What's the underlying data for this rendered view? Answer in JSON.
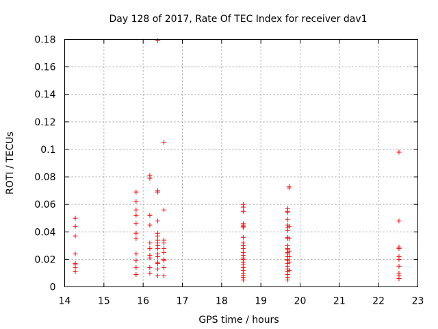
{
  "chart_data": {
    "type": "scatter",
    "title": "Day 128 of 2017, Rate Of TEC Index for receiver dav1",
    "xlabel": "GPS time / hours",
    "ylabel": "ROTI / TECUs",
    "xlim": [
      14,
      23
    ],
    "ylim": [
      0,
      0.18
    ],
    "x_ticks": [
      14,
      15,
      16,
      17,
      18,
      19,
      20,
      21,
      22,
      23
    ],
    "x_tick_labels": [
      "14",
      "15",
      "16",
      "17",
      "18",
      "19",
      "20",
      "21",
      "22",
      "23"
    ],
    "y_ticks": [
      0,
      0.02,
      0.04,
      0.06,
      0.08,
      0.1,
      0.12,
      0.14,
      0.16,
      0.18
    ],
    "y_tick_labels": [
      "0",
      "0.02",
      "0.04",
      "0.06",
      "0.08",
      "0.1",
      "0.12",
      "0.14",
      "0.16",
      "0.18"
    ],
    "grid": true,
    "marker": "+",
    "color": "#ff0000",
    "series": [
      {
        "name": "dav1",
        "points": [
          [
            14.27,
            0.05
          ],
          [
            14.27,
            0.044
          ],
          [
            14.27,
            0.037
          ],
          [
            14.27,
            0.024
          ],
          [
            14.27,
            0.017
          ],
          [
            14.27,
            0.016
          ],
          [
            14.27,
            0.014
          ],
          [
            14.27,
            0.011
          ],
          [
            15.82,
            0.069
          ],
          [
            15.82,
            0.062
          ],
          [
            15.82,
            0.056
          ],
          [
            15.82,
            0.052
          ],
          [
            15.82,
            0.046
          ],
          [
            15.82,
            0.039
          ],
          [
            15.82,
            0.035
          ],
          [
            15.82,
            0.024
          ],
          [
            15.82,
            0.019
          ],
          [
            15.82,
            0.014
          ],
          [
            15.82,
            0.009
          ],
          [
            16.17,
            0.081
          ],
          [
            16.17,
            0.079
          ],
          [
            16.17,
            0.052
          ],
          [
            16.17,
            0.045
          ],
          [
            16.17,
            0.032
          ],
          [
            16.17,
            0.028
          ],
          [
            16.17,
            0.023
          ],
          [
            16.17,
            0.021
          ],
          [
            16.17,
            0.014
          ],
          [
            16.17,
            0.01
          ],
          [
            16.37,
            0.179
          ],
          [
            16.37,
            0.07
          ],
          [
            16.37,
            0.069
          ],
          [
            16.37,
            0.048
          ],
          [
            16.37,
            0.039
          ],
          [
            16.37,
            0.037
          ],
          [
            16.37,
            0.034
          ],
          [
            16.37,
            0.032
          ],
          [
            16.37,
            0.03
          ],
          [
            16.37,
            0.028
          ],
          [
            16.37,
            0.024
          ],
          [
            16.37,
            0.022
          ],
          [
            16.37,
            0.018
          ],
          [
            16.37,
            0.017
          ],
          [
            16.37,
            0.013
          ],
          [
            16.37,
            0.008
          ],
          [
            16.53,
            0.105
          ],
          [
            16.53,
            0.056
          ],
          [
            16.53,
            0.034
          ],
          [
            16.53,
            0.032
          ],
          [
            16.53,
            0.028
          ],
          [
            16.53,
            0.025
          ],
          [
            16.53,
            0.02
          ],
          [
            16.53,
            0.019
          ],
          [
            16.53,
            0.014
          ],
          [
            16.53,
            0.008
          ],
          [
            18.55,
            0.06
          ],
          [
            18.55,
            0.058
          ],
          [
            18.55,
            0.055
          ],
          [
            18.55,
            0.046
          ],
          [
            18.55,
            0.045
          ],
          [
            18.55,
            0.044
          ],
          [
            18.55,
            0.043
          ],
          [
            18.55,
            0.036
          ],
          [
            18.55,
            0.032
          ],
          [
            18.55,
            0.03
          ],
          [
            18.55,
            0.028
          ],
          [
            18.55,
            0.025
          ],
          [
            18.55,
            0.023
          ],
          [
            18.55,
            0.021
          ],
          [
            18.55,
            0.02
          ],
          [
            18.55,
            0.018
          ],
          [
            18.55,
            0.016
          ],
          [
            18.55,
            0.014
          ],
          [
            18.55,
            0.012
          ],
          [
            18.55,
            0.01
          ],
          [
            18.55,
            0.008
          ],
          [
            18.55,
            0.007
          ],
          [
            18.55,
            0.005
          ],
          [
            19.68,
            0.057
          ],
          [
            19.68,
            0.055
          ],
          [
            19.68,
            0.054
          ],
          [
            19.68,
            0.049
          ],
          [
            19.68,
            0.045
          ],
          [
            19.68,
            0.043
          ],
          [
            19.68,
            0.041
          ],
          [
            19.68,
            0.036
          ],
          [
            19.68,
            0.035
          ],
          [
            19.68,
            0.03
          ],
          [
            19.68,
            0.028
          ],
          [
            19.68,
            0.027
          ],
          [
            19.68,
            0.025
          ],
          [
            19.68,
            0.024
          ],
          [
            19.68,
            0.022
          ],
          [
            19.68,
            0.02
          ],
          [
            19.68,
            0.019
          ],
          [
            19.68,
            0.017
          ],
          [
            19.68,
            0.015
          ],
          [
            19.68,
            0.013
          ],
          [
            19.68,
            0.011
          ],
          [
            19.68,
            0.009
          ],
          [
            19.68,
            0.007
          ],
          [
            19.68,
            0.005
          ],
          [
            19.72,
            0.073
          ],
          [
            19.72,
            0.072
          ],
          [
            19.72,
            0.044
          ],
          [
            19.72,
            0.035
          ],
          [
            19.72,
            0.026
          ],
          [
            19.72,
            0.022
          ],
          [
            19.72,
            0.018
          ],
          [
            19.72,
            0.012
          ],
          [
            22.52,
            0.098
          ],
          [
            22.52,
            0.048
          ],
          [
            22.52,
            0.029
          ],
          [
            22.52,
            0.028
          ],
          [
            22.52,
            0.022
          ],
          [
            22.52,
            0.02
          ],
          [
            22.52,
            0.015
          ],
          [
            22.52,
            0.01
          ],
          [
            22.52,
            0.008
          ],
          [
            22.52,
            0.006
          ]
        ]
      }
    ]
  }
}
